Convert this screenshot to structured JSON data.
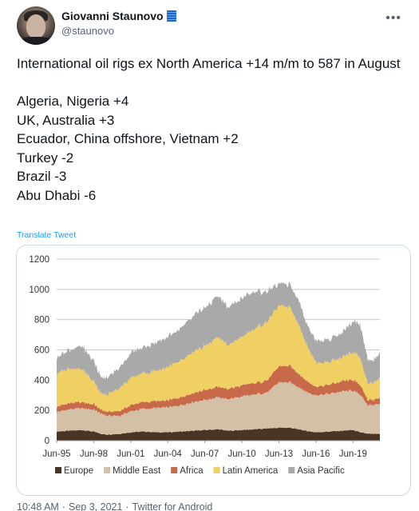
{
  "author": {
    "name": "Giovanni Staunovo",
    "handle": "@staunovo",
    "verified_badge": "flag-icon"
  },
  "tweet": {
    "lines": [
      "International oil rigs ex North America +14 m/m to 587 in August",
      "",
      "Algeria, Nigeria +4",
      "UK, Australia +3",
      "Ecuador, China offshore, Vietnam +2",
      "Turkey -2",
      "Brazil -3",
      "Abu Dhabi -6"
    ],
    "translate_label": "Translate Tweet"
  },
  "footer": {
    "time": "10:48 AM",
    "date": "Sep 3, 2021",
    "source": "Twitter for Android",
    "separator": "·"
  },
  "colors": {
    "europe": "#4a3424",
    "middle_east": "#d4c0a6",
    "africa": "#c8694a",
    "latin_america": "#f0cf63",
    "asia_pacific": "#a9a9aa",
    "link": "#1d9bf0"
  },
  "chart_data": {
    "type": "area",
    "stacked": true,
    "title": "",
    "xlabel": "",
    "ylabel": "",
    "ylim": [
      0,
      1200
    ],
    "yticks": [
      0,
      200,
      400,
      600,
      800,
      1000,
      1200
    ],
    "xtick_labels": [
      "Jun-95",
      "Jun-98",
      "Jun-01",
      "Jun-04",
      "Jun-07",
      "Jun-10",
      "Jun-13",
      "Jun-16",
      "Jun-19"
    ],
    "xtick_years": [
      1995.42,
      1998.42,
      2001.42,
      2004.42,
      2007.42,
      2010.42,
      2013.42,
      2016.42,
      2019.42
    ],
    "xlim": [
      1995.42,
      2021.6
    ],
    "grid": true,
    "legend_position": "bottom",
    "x": [
      1995.42,
      1996.4,
      1997.5,
      1998.42,
      1999.0,
      1999.5,
      2000.5,
      2001.42,
      2002.5,
      2003.5,
      2004.42,
      2005.5,
      2006.5,
      2007.42,
      2008.5,
      2009.3,
      2010.42,
      2011.5,
      2012.5,
      2013.42,
      2014.3,
      2015.0,
      2015.6,
      2016.42,
      2017.5,
      2018.5,
      2019.42,
      2020.0,
      2020.6,
      2021.1,
      2021.6
    ],
    "series": [
      {
        "name": "Europe",
        "values": [
          60,
          65,
          70,
          60,
          45,
          40,
          45,
          55,
          60,
          55,
          55,
          60,
          65,
          70,
          75,
          65,
          70,
          75,
          80,
          85,
          85,
          75,
          65,
          55,
          60,
          65,
          70,
          55,
          45,
          45,
          45
        ]
      },
      {
        "name": "Middle East",
        "values": [
          130,
          140,
          145,
          145,
          135,
          125,
          120,
          140,
          150,
          160,
          165,
          175,
          190,
          200,
          210,
          210,
          220,
          230,
          240,
          300,
          300,
          280,
          260,
          245,
          250,
          260,
          260,
          250,
          190,
          190,
          200
        ]
      },
      {
        "name": "Africa",
        "values": [
          35,
          40,
          40,
          35,
          25,
          25,
          30,
          40,
          45,
          45,
          45,
          55,
          60,
          65,
          70,
          65,
          75,
          75,
          80,
          105,
          110,
          90,
          75,
          55,
          60,
          65,
          70,
          65,
          35,
          35,
          40
        ]
      },
      {
        "name": "Latin America",
        "values": [
          220,
          230,
          220,
          150,
          110,
          110,
          150,
          180,
          190,
          200,
          220,
          240,
          270,
          290,
          330,
          290,
          320,
          360,
          390,
          400,
          390,
          330,
          250,
          160,
          150,
          160,
          180,
          180,
          110,
          110,
          130
        ]
      },
      {
        "name": "Asia Pacific",
        "values": [
          105,
          125,
          150,
          135,
          110,
          110,
          135,
          165,
          175,
          185,
          200,
          215,
          240,
          255,
          270,
          250,
          255,
          245,
          200,
          140,
          150,
          160,
          140,
          145,
          150,
          160,
          200,
          220,
          160,
          150,
          170
        ]
      }
    ]
  }
}
